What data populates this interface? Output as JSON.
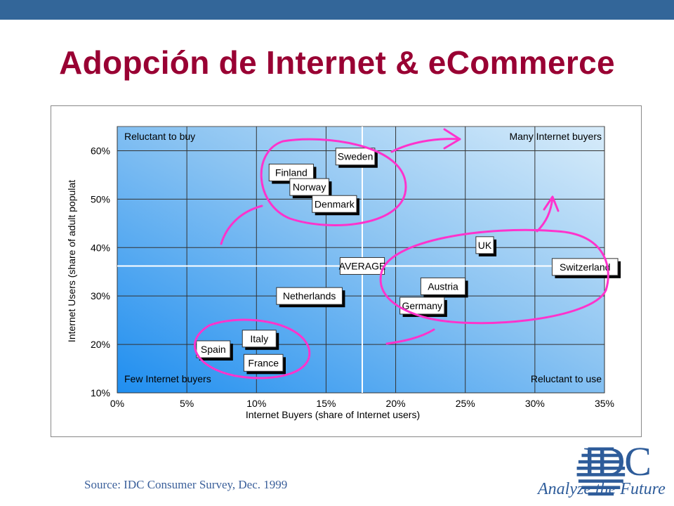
{
  "slide": {
    "title": "Adopción de Internet & eCommerce",
    "source": "Source: IDC Consumer Survey, Dec. 1999",
    "logo_text": "IDC",
    "logo_tagline": "Analyze the Future",
    "colors": {
      "title": "#990033",
      "topbar": "#336699",
      "annotation": "#ff33cc",
      "logo": "#2e5c9a"
    }
  },
  "chart_data": {
    "type": "scatter",
    "xlabel": "Internet Buyers (share of Internet users)",
    "ylabel": "Internet Users (share of adult populat",
    "xlim": [
      0,
      35
    ],
    "ylim": [
      10,
      65
    ],
    "xticks": [
      "0%",
      "5%",
      "10%",
      "15%",
      "20%",
      "25%",
      "30%",
      "35%"
    ],
    "yticks": [
      "10%",
      "20%",
      "30%",
      "40%",
      "50%",
      "60%"
    ],
    "grid": true,
    "average": {
      "label": "AVERAGE",
      "x": 17.6,
      "y": 36.2
    },
    "quadrant_labels": [
      {
        "text": "Reluctant to buy",
        "position": "top-left"
      },
      {
        "text": "Many Internet buyers",
        "position": "top-right"
      },
      {
        "text": "Few Internet buyers",
        "position": "bottom-left"
      },
      {
        "text": "Reluctant to use",
        "position": "bottom-right"
      }
    ],
    "points": [
      {
        "label": "Sweden",
        "x": 17.1,
        "y": 58.8
      },
      {
        "label": "Finland",
        "x": 12.5,
        "y": 55.5
      },
      {
        "label": "Norway",
        "x": 13.8,
        "y": 52.5
      },
      {
        "label": "Denmark",
        "x": 15.6,
        "y": 49.0
      },
      {
        "label": "UK",
        "x": 26.4,
        "y": 40.5
      },
      {
        "label": "Switzerland",
        "x": 33.6,
        "y": 36.0
      },
      {
        "label": "Austria",
        "x": 23.4,
        "y": 32.0
      },
      {
        "label": "Germany",
        "x": 21.9,
        "y": 28.0
      },
      {
        "label": "Netherlands",
        "x": 13.8,
        "y": 30.0
      },
      {
        "label": "Italy",
        "x": 10.2,
        "y": 21.2
      },
      {
        "label": "Spain",
        "x": 6.9,
        "y": 19.0
      },
      {
        "label": "France",
        "x": 10.5,
        "y": 16.2
      }
    ]
  }
}
